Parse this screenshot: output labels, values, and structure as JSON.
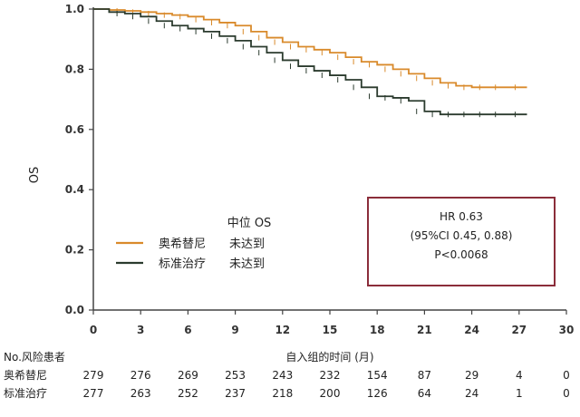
{
  "chart_data": {
    "type": "line",
    "ylabel": "OS",
    "xlabel": "自入组的时间 (月)",
    "xlim": [
      0,
      30
    ],
    "ylim": [
      0.0,
      1.0
    ],
    "x_ticks": [
      0,
      3,
      6,
      9,
      12,
      15,
      18,
      21,
      24,
      27,
      30
    ],
    "y_ticks": [
      "0.0",
      "0.2",
      "0.4",
      "0.6",
      "0.8",
      "1.0"
    ],
    "series": [
      {
        "name": "奥希替尼",
        "color": "#d98a2b",
        "x": [
          0,
          1,
          2,
          3,
          4,
          5,
          6,
          7,
          8,
          9,
          10,
          11,
          12,
          13,
          14,
          15,
          16,
          17,
          18,
          19,
          20,
          21,
          22,
          23,
          24,
          25,
          26,
          27.5
        ],
        "y": [
          1.0,
          0.997,
          0.994,
          0.99,
          0.985,
          0.98,
          0.975,
          0.965,
          0.955,
          0.945,
          0.925,
          0.905,
          0.89,
          0.875,
          0.865,
          0.855,
          0.84,
          0.825,
          0.815,
          0.8,
          0.785,
          0.77,
          0.755,
          0.745,
          0.74,
          0.74,
          0.74,
          0.74
        ]
      },
      {
        "name": "标准治疗",
        "color": "#2b3b2e",
        "x": [
          0,
          1,
          2,
          3,
          4,
          5,
          6,
          7,
          8,
          9,
          10,
          11,
          12,
          13,
          14,
          15,
          16,
          17,
          18,
          19,
          20,
          21,
          22,
          23,
          24,
          25,
          26,
          27.5
        ],
        "y": [
          1.0,
          0.99,
          0.985,
          0.975,
          0.96,
          0.945,
          0.935,
          0.925,
          0.91,
          0.895,
          0.875,
          0.855,
          0.83,
          0.81,
          0.795,
          0.78,
          0.765,
          0.74,
          0.71,
          0.705,
          0.695,
          0.66,
          0.65,
          0.65,
          0.65,
          0.65,
          0.65,
          0.65
        ]
      }
    ],
    "legend_title": "中位 OS",
    "legend": [
      {
        "name": "奥希替尼",
        "value": "未达到",
        "color": "#d98a2b"
      },
      {
        "name": "标准治疗",
        "value": "未达到",
        "color": "#2b3b2e"
      }
    ],
    "stats_box": {
      "lines": [
        "HR 0.63",
        "(95%CI 0.45, 0.88)",
        "P<0.0068"
      ],
      "border_color": "#8b2d3a"
    },
    "risk_table": {
      "header": "No.风险患者",
      "rows": [
        {
          "label": "奥希替尼",
          "values": [
            "279",
            "276",
            "269",
            "253",
            "243",
            "232",
            "154",
            "87",
            "29",
            "4",
            "0"
          ]
        },
        {
          "label": "标准治疗",
          "values": [
            "277",
            "263",
            "252",
            "237",
            "218",
            "200",
            "126",
            "64",
            "24",
            "1",
            "0"
          ]
        }
      ]
    }
  }
}
